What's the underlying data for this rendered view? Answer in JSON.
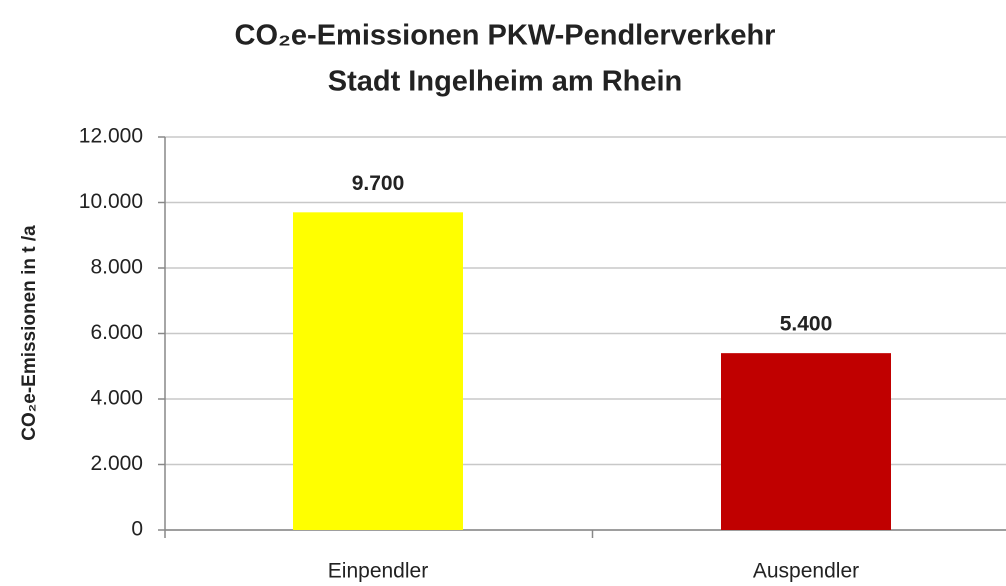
{
  "chart_data": {
    "type": "bar",
    "title": "CO₂e-Emissionen  PKW-Pendlerverkehr",
    "subtitle": "Stadt Ingelheim am Rhein",
    "y_label": "CO₂e-Emissionen in t /a",
    "categories": [
      "Einpendler",
      "Auspendler"
    ],
    "values": [
      9700,
      5400
    ],
    "value_labels": [
      "9.700",
      "5.400"
    ],
    "colors": [
      "#ffff00",
      "#c00000"
    ],
    "ylim": [
      0,
      12000
    ],
    "yticks": [
      0,
      {
        "value": 2000,
        "label": "2.000"
      },
      {
        "value": 4000,
        "label": "4.000"
      },
      {
        "value": 6000,
        "label": "6.000"
      },
      {
        "value": 8000,
        "label": "8.000"
      },
      {
        "value": 10000,
        "label": "10.000"
      },
      {
        "value": 12000,
        "label": "12.000"
      }
    ],
    "grid": true
  }
}
